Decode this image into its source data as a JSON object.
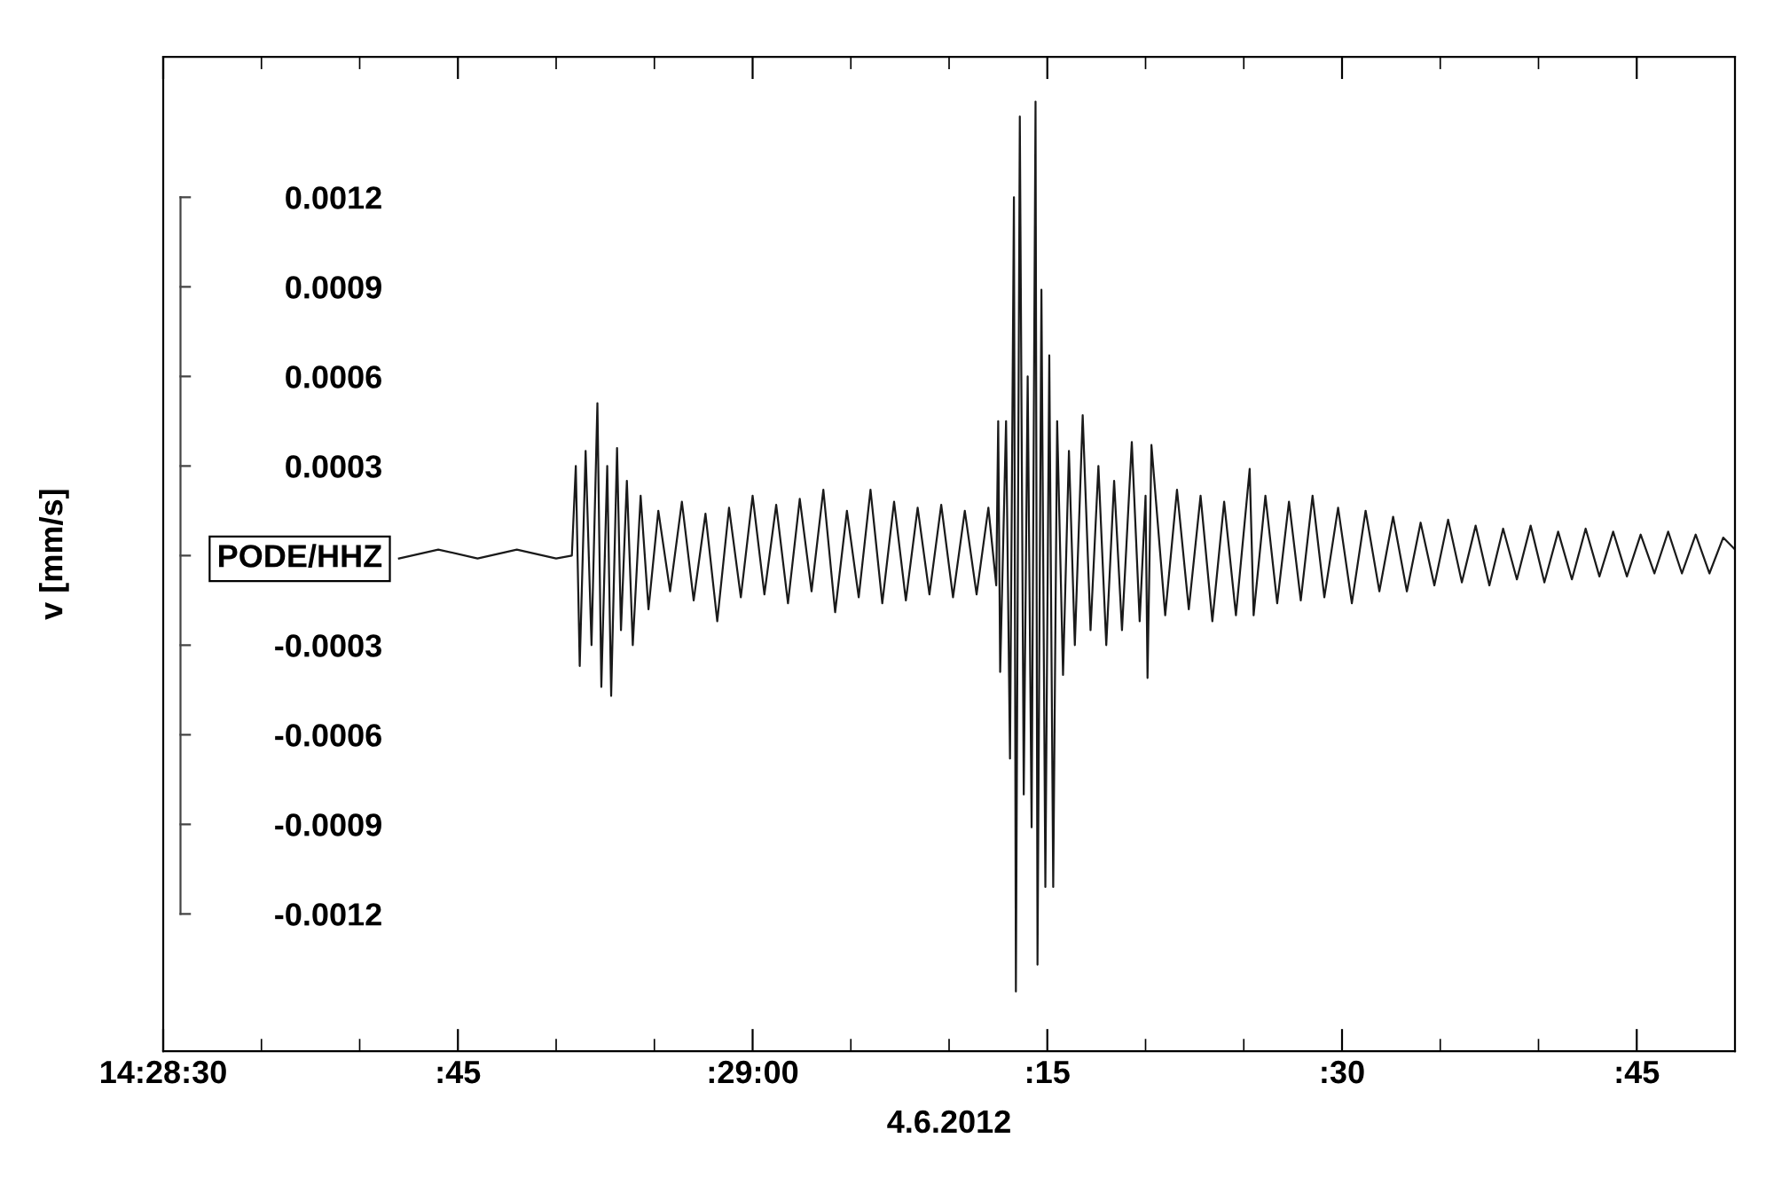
{
  "chart_data": {
    "type": "line",
    "xlabel": "4.6.2012",
    "ylabel": "v [mm/s]",
    "xlim": [
      "2012-06-04T14:28:30",
      "2012-06-04T14:29:50"
    ],
    "ylim": [
      -0.00166,
      0.00167
    ],
    "xticks": [
      {
        "value": "2012-06-04T14:28:30",
        "label": "14:28:30"
      },
      {
        "value": "2012-06-04T14:28:35",
        "label": null
      },
      {
        "value": "2012-06-04T14:28:40",
        "label": null
      },
      {
        "value": "2012-06-04T14:28:45",
        "label": ":45"
      },
      {
        "value": "2012-06-04T14:28:50",
        "label": null
      },
      {
        "value": "2012-06-04T14:28:55",
        "label": null
      },
      {
        "value": "2012-06-04T14:29:00",
        "label": ":29:00"
      },
      {
        "value": "2012-06-04T14:29:05",
        "label": null
      },
      {
        "value": "2012-06-04T14:29:10",
        "label": null
      },
      {
        "value": "2012-06-04T14:29:15",
        "label": ":15"
      },
      {
        "value": "2012-06-04T14:29:20",
        "label": null
      },
      {
        "value": "2012-06-04T14:29:25",
        "label": null
      },
      {
        "value": "2012-06-04T14:29:30",
        "label": ":30"
      },
      {
        "value": "2012-06-04T14:29:35",
        "label": null
      },
      {
        "value": "2012-06-04T14:29:40",
        "label": null
      },
      {
        "value": "2012-06-04T14:29:45",
        "label": ":45"
      }
    ],
    "yticks": [
      {
        "value": 0.0012,
        "label": "0.0012"
      },
      {
        "value": 0.0009,
        "label": "0.0009"
      },
      {
        "value": 0.0006,
        "label": "0.0006"
      },
      {
        "value": 0.0003,
        "label": "0.0003"
      },
      {
        "value": 0,
        "label": "PODE/HHZ"
      },
      {
        "value": -0.0003,
        "label": "-0.0003"
      },
      {
        "value": -0.0006,
        "label": "-0.0006"
      },
      {
        "value": -0.0009,
        "label": "-0.0009"
      },
      {
        "value": -0.0012,
        "label": "-0.0012"
      }
    ],
    "series": [
      {
        "color": "#1a1a1a",
        "x": [
          "2012-06-04T14:28:42",
          "2012-06-04T14:28:44",
          "2012-06-04T14:28:46",
          "2012-06-04T14:28:48",
          "2012-06-04T14:28:50",
          "2012-06-04T14:28:50.8",
          "2012-06-04T14:28:51.0",
          "2012-06-04T14:28:51.2",
          "2012-06-04T14:28:51.5",
          "2012-06-04T14:28:51.8",
          "2012-06-04T14:28:52.1",
          "2012-06-04T14:28:52.3",
          "2012-06-04T14:28:52.6",
          "2012-06-04T14:28:52.8",
          "2012-06-04T14:28:53.1",
          "2012-06-04T14:28:53.3",
          "2012-06-04T14:28:53.6",
          "2012-06-04T14:28:53.9",
          "2012-06-04T14:28:54.3",
          "2012-06-04T14:28:54.7",
          "2012-06-04T14:28:55.2",
          "2012-06-04T14:28:55.8",
          "2012-06-04T14:28:56.4",
          "2012-06-04T14:28:57.0",
          "2012-06-04T14:28:57.6",
          "2012-06-04T14:28:58.2",
          "2012-06-04T14:28:58.8",
          "2012-06-04T14:28:59.4",
          "2012-06-04T14:29:00.0",
          "2012-06-04T14:29:00.6",
          "2012-06-04T14:29:01.2",
          "2012-06-04T14:29:01.8",
          "2012-06-04T14:29:02.4",
          "2012-06-04T14:29:03.0",
          "2012-06-04T14:29:03.6",
          "2012-06-04T14:29:04.2",
          "2012-06-04T14:29:04.8",
          "2012-06-04T14:29:05.4",
          "2012-06-04T14:29:06.0",
          "2012-06-04T14:29:06.6",
          "2012-06-04T14:29:07.2",
          "2012-06-04T14:29:07.8",
          "2012-06-04T14:29:08.4",
          "2012-06-04T14:29:09.0",
          "2012-06-04T14:29:09.6",
          "2012-06-04T14:29:10.2",
          "2012-06-04T14:29:10.8",
          "2012-06-04T14:29:11.4",
          "2012-06-04T14:29:12.0",
          "2012-06-04T14:29:12.4",
          "2012-06-04T14:29:12.5",
          "2012-06-04T14:29:12.6",
          "2012-06-04T14:29:12.9",
          "2012-06-04T14:29:13.1",
          "2012-06-04T14:29:13.3",
          "2012-06-04T14:29:13.4",
          "2012-06-04T14:29:13.6",
          "2012-06-04T14:29:13.8",
          "2012-06-04T14:29:14.0",
          "2012-06-04T14:29:14.2",
          "2012-06-04T14:29:14.4",
          "2012-06-04T14:29:14.5",
          "2012-06-04T14:29:14.7",
          "2012-06-04T14:29:14.9",
          "2012-06-04T14:29:15.1",
          "2012-06-04T14:29:15.3",
          "2012-06-04T14:29:15.5",
          "2012-06-04T14:29:15.8",
          "2012-06-04T14:29:16.1",
          "2012-06-04T14:29:16.4",
          "2012-06-04T14:29:16.8",
          "2012-06-04T14:29:17.2",
          "2012-06-04T14:29:17.6",
          "2012-06-04T14:29:18.0",
          "2012-06-04T14:29:18.4",
          "2012-06-04T14:29:18.8",
          "2012-06-04T14:29:19.3",
          "2012-06-04T14:29:19.7",
          "2012-06-04T14:29:20.0",
          "2012-06-04T14:29:20.1",
          "2012-06-04T14:29:20.3",
          "2012-06-04T14:29:21.0",
          "2012-06-04T14:29:21.6",
          "2012-06-04T14:29:22.2",
          "2012-06-04T14:29:22.8",
          "2012-06-04T14:29:23.4",
          "2012-06-04T14:29:24.0",
          "2012-06-04T14:29:24.6",
          "2012-06-04T14:29:25.3",
          "2012-06-04T14:29:25.5",
          "2012-06-04T14:29:26.1",
          "2012-06-04T14:29:26.7",
          "2012-06-04T14:29:27.3",
          "2012-06-04T14:29:27.9",
          "2012-06-04T14:29:28.5",
          "2012-06-04T14:29:29.1",
          "2012-06-04T14:29:29.8",
          "2012-06-04T14:29:30.5",
          "2012-06-04T14:29:31.2",
          "2012-06-04T14:29:31.9",
          "2012-06-04T14:29:32.6",
          "2012-06-04T14:29:33.3",
          "2012-06-04T14:29:34.0",
          "2012-06-04T14:29:34.7",
          "2012-06-04T14:29:35.4",
          "2012-06-04T14:29:36.1",
          "2012-06-04T14:29:36.8",
          "2012-06-04T14:29:37.5",
          "2012-06-04T14:29:38.2",
          "2012-06-04T14:29:38.9",
          "2012-06-04T14:29:39.6",
          "2012-06-04T14:29:40.3",
          "2012-06-04T14:29:41.0",
          "2012-06-04T14:29:41.7",
          "2012-06-04T14:29:42.4",
          "2012-06-04T14:29:43.1",
          "2012-06-04T14:29:43.8",
          "2012-06-04T14:29:44.5",
          "2012-06-04T14:29:45.2",
          "2012-06-04T14:29:45.9",
          "2012-06-04T14:29:46.6",
          "2012-06-04T14:29:47.3",
          "2012-06-04T14:29:48.0",
          "2012-06-04T14:29:48.7",
          "2012-06-04T14:29:49.4",
          "2012-06-04T14:29:50.0"
        ],
        "values": [
          -1e-05,
          2e-05,
          -1e-05,
          2e-05,
          -1e-05,
          0.0,
          0.0003,
          -0.00037,
          0.00035,
          -0.0003,
          0.00051,
          -0.00044,
          0.0003,
          -0.00047,
          0.00036,
          -0.00025,
          0.00025,
          -0.0003,
          0.0002,
          -0.00018,
          0.00015,
          -0.00012,
          0.00018,
          -0.00015,
          0.00014,
          -0.00022,
          0.00016,
          -0.00014,
          0.0002,
          -0.00013,
          0.00017,
          -0.00016,
          0.00019,
          -0.00012,
          0.00022,
          -0.00019,
          0.00015,
          -0.00014,
          0.00022,
          -0.00016,
          0.00018,
          -0.00015,
          0.00016,
          -0.00013,
          0.00017,
          -0.00014,
          0.00015,
          -0.00013,
          0.00016,
          -0.0001,
          0.00045,
          -0.00039,
          0.00045,
          -0.00068,
          0.0012,
          -0.00146,
          0.00147,
          -0.0008,
          0.0006,
          -0.00091,
          0.00152,
          -0.00137,
          0.00089,
          -0.00111,
          0.00067,
          -0.00111,
          0.00045,
          -0.0004,
          0.00035,
          -0.0003,
          0.00047,
          -0.00025,
          0.0003,
          -0.0003,
          0.00025,
          -0.00025,
          0.00038,
          -0.00022,
          0.0002,
          -0.00041,
          0.00037,
          -0.0002,
          0.00022,
          -0.00018,
          0.0002,
          -0.00022,
          0.00018,
          -0.0002,
          0.00029,
          -0.0002,
          0.0002,
          -0.00016,
          0.00018,
          -0.00015,
          0.0002,
          -0.00014,
          0.00016,
          -0.00016,
          0.00015,
          -0.00012,
          0.00013,
          -0.00012,
          0.00011,
          -0.0001,
          0.00012,
          -9e-05,
          0.0001,
          -0.0001,
          9e-05,
          -8e-05,
          0.0001,
          -9e-05,
          8e-05,
          -8e-05,
          9e-05,
          -7e-05,
          8e-05,
          -7e-05,
          7e-05,
          -6e-05,
          8e-05,
          -6e-05,
          7e-05,
          -6e-05,
          6e-05,
          2e-05
        ]
      }
    ]
  }
}
